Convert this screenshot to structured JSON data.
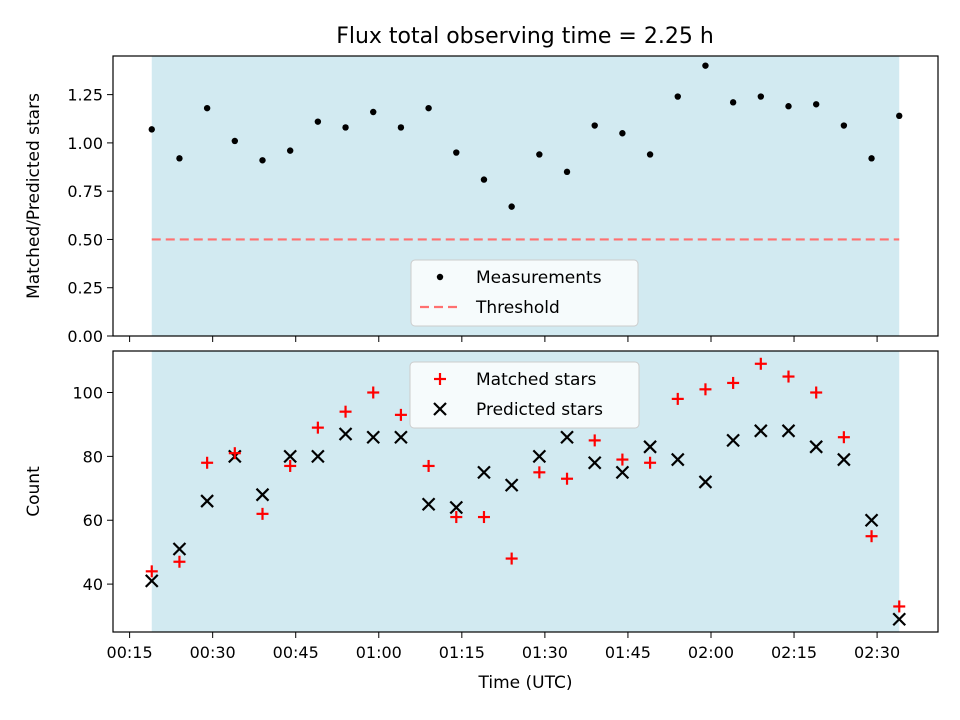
{
  "title": "Flux total observing time = 2.25 h",
  "colors": {
    "shade": "#add8e6",
    "threshold": "#ff7070",
    "matched": "#ff0000",
    "predicted": "#000000",
    "measurement": "#000000"
  },
  "chart_data": [
    {
      "type": "scatter",
      "ylabel": "Matched/Predicted stars",
      "ylim": [
        0.0,
        1.45
      ],
      "yticks": [
        "0.00",
        "0.25",
        "0.50",
        "0.75",
        "1.00",
        "1.25"
      ],
      "yticks_values": [
        0.0,
        0.25,
        0.5,
        0.75,
        1.0,
        1.25
      ],
      "xlim": [
        "00:12",
        "02:41"
      ],
      "x": [
        "00:19",
        "00:24",
        "00:29",
        "00:34",
        "00:39",
        "00:44",
        "00:49",
        "00:54",
        "00:59",
        "01:04",
        "01:09",
        "01:14",
        "01:19",
        "01:24",
        "01:29",
        "01:34",
        "01:39",
        "01:44",
        "01:49",
        "01:54",
        "01:59",
        "02:04",
        "02:09",
        "02:14",
        "02:19",
        "02:24",
        "02:29",
        "02:34"
      ],
      "series": [
        {
          "name": "Measurements",
          "marker": "dot",
          "values": [
            1.07,
            0.92,
            1.18,
            1.01,
            0.91,
            0.96,
            1.11,
            1.08,
            1.16,
            1.08,
            1.18,
            0.95,
            0.81,
            0.67,
            0.94,
            0.85,
            1.09,
            1.05,
            0.94,
            1.24,
            1.4,
            1.21,
            1.24,
            1.19,
            1.2,
            1.09,
            0.92,
            1.14
          ]
        },
        {
          "name": "Threshold",
          "style": "dashed",
          "values": [
            0.5,
            0.5
          ]
        }
      ],
      "shaded_span": [
        "00:19",
        "02:34"
      ],
      "legend": "lower-center"
    },
    {
      "type": "scatter",
      "xlabel": "Time (UTC)",
      "ylabel": "Count",
      "ylim": [
        25,
        113
      ],
      "yticks": [
        "40",
        "60",
        "80",
        "100"
      ],
      "yticks_values": [
        40,
        60,
        80,
        100
      ],
      "xlim": [
        "00:12",
        "02:41"
      ],
      "xticks": [
        "00:15",
        "00:30",
        "00:45",
        "01:00",
        "01:15",
        "01:30",
        "01:45",
        "02:00",
        "02:15",
        "02:30"
      ],
      "x": [
        "00:19",
        "00:24",
        "00:29",
        "00:34",
        "00:39",
        "00:44",
        "00:49",
        "00:54",
        "00:59",
        "01:04",
        "01:09",
        "01:14",
        "01:19",
        "01:24",
        "01:29",
        "01:34",
        "01:39",
        "01:44",
        "01:49",
        "01:54",
        "01:59",
        "02:04",
        "02:09",
        "02:14",
        "02:19",
        "02:24",
        "02:29",
        "02:34"
      ],
      "series": [
        {
          "name": "Matched stars",
          "marker": "plus",
          "values": [
            44,
            47,
            78,
            81,
            62,
            77,
            89,
            94,
            100,
            93,
            77,
            61,
            61,
            48,
            75,
            73,
            85,
            79,
            78,
            98,
            101,
            103,
            109,
            105,
            100,
            86,
            55,
            33
          ]
        },
        {
          "name": "Predicted stars",
          "marker": "x",
          "values": [
            41,
            51,
            66,
            80,
            68,
            80,
            80,
            87,
            86,
            86,
            65,
            64,
            75,
            71,
            80,
            86,
            78,
            75,
            83,
            79,
            72,
            85,
            88,
            88,
            83,
            79,
            60,
            29
          ]
        }
      ],
      "shaded_span": [
        "00:19",
        "02:34"
      ],
      "legend": "top-center"
    }
  ]
}
